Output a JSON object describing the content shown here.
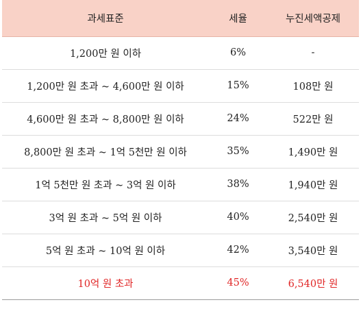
{
  "header": {
    "col_bracket": "과세표준",
    "col_rate": "세율",
    "col_deduction": "누진세액공제"
  },
  "rows": [
    {
      "bracket": "1,200만 원 이하",
      "rate": "6%",
      "deduction": "-"
    },
    {
      "bracket": "1,200만 원 초과 ~ 4,600만 원 이하",
      "rate": "15%",
      "deduction": "108만 원"
    },
    {
      "bracket": "4,600만 원 초과 ~ 8,800만 원 이하",
      "rate": "24%",
      "deduction": "522만 원"
    },
    {
      "bracket": "8,800만 원 초과 ~ 1억 5천만 원 이하",
      "rate": "35%",
      "deduction": "1,490만 원"
    },
    {
      "bracket": "1억 5천만 원 초과 ~ 3억 원 이하",
      "rate": "38%",
      "deduction": "1,940만 원"
    },
    {
      "bracket": "3억 원 초과 ~ 5억 원 이하",
      "rate": "40%",
      "deduction": "2,540만 원"
    },
    {
      "bracket": "5억 원 초과 ~ 10억 원 이하",
      "rate": "42%",
      "deduction": "3,540만 원"
    },
    {
      "bracket": "10억 원 초과",
      "rate": "45%",
      "deduction": "6,540만 원"
    }
  ],
  "colors": {
    "header_bg": "#f9d2c7",
    "highlight_text": "#e02525",
    "text": "#222222"
  }
}
